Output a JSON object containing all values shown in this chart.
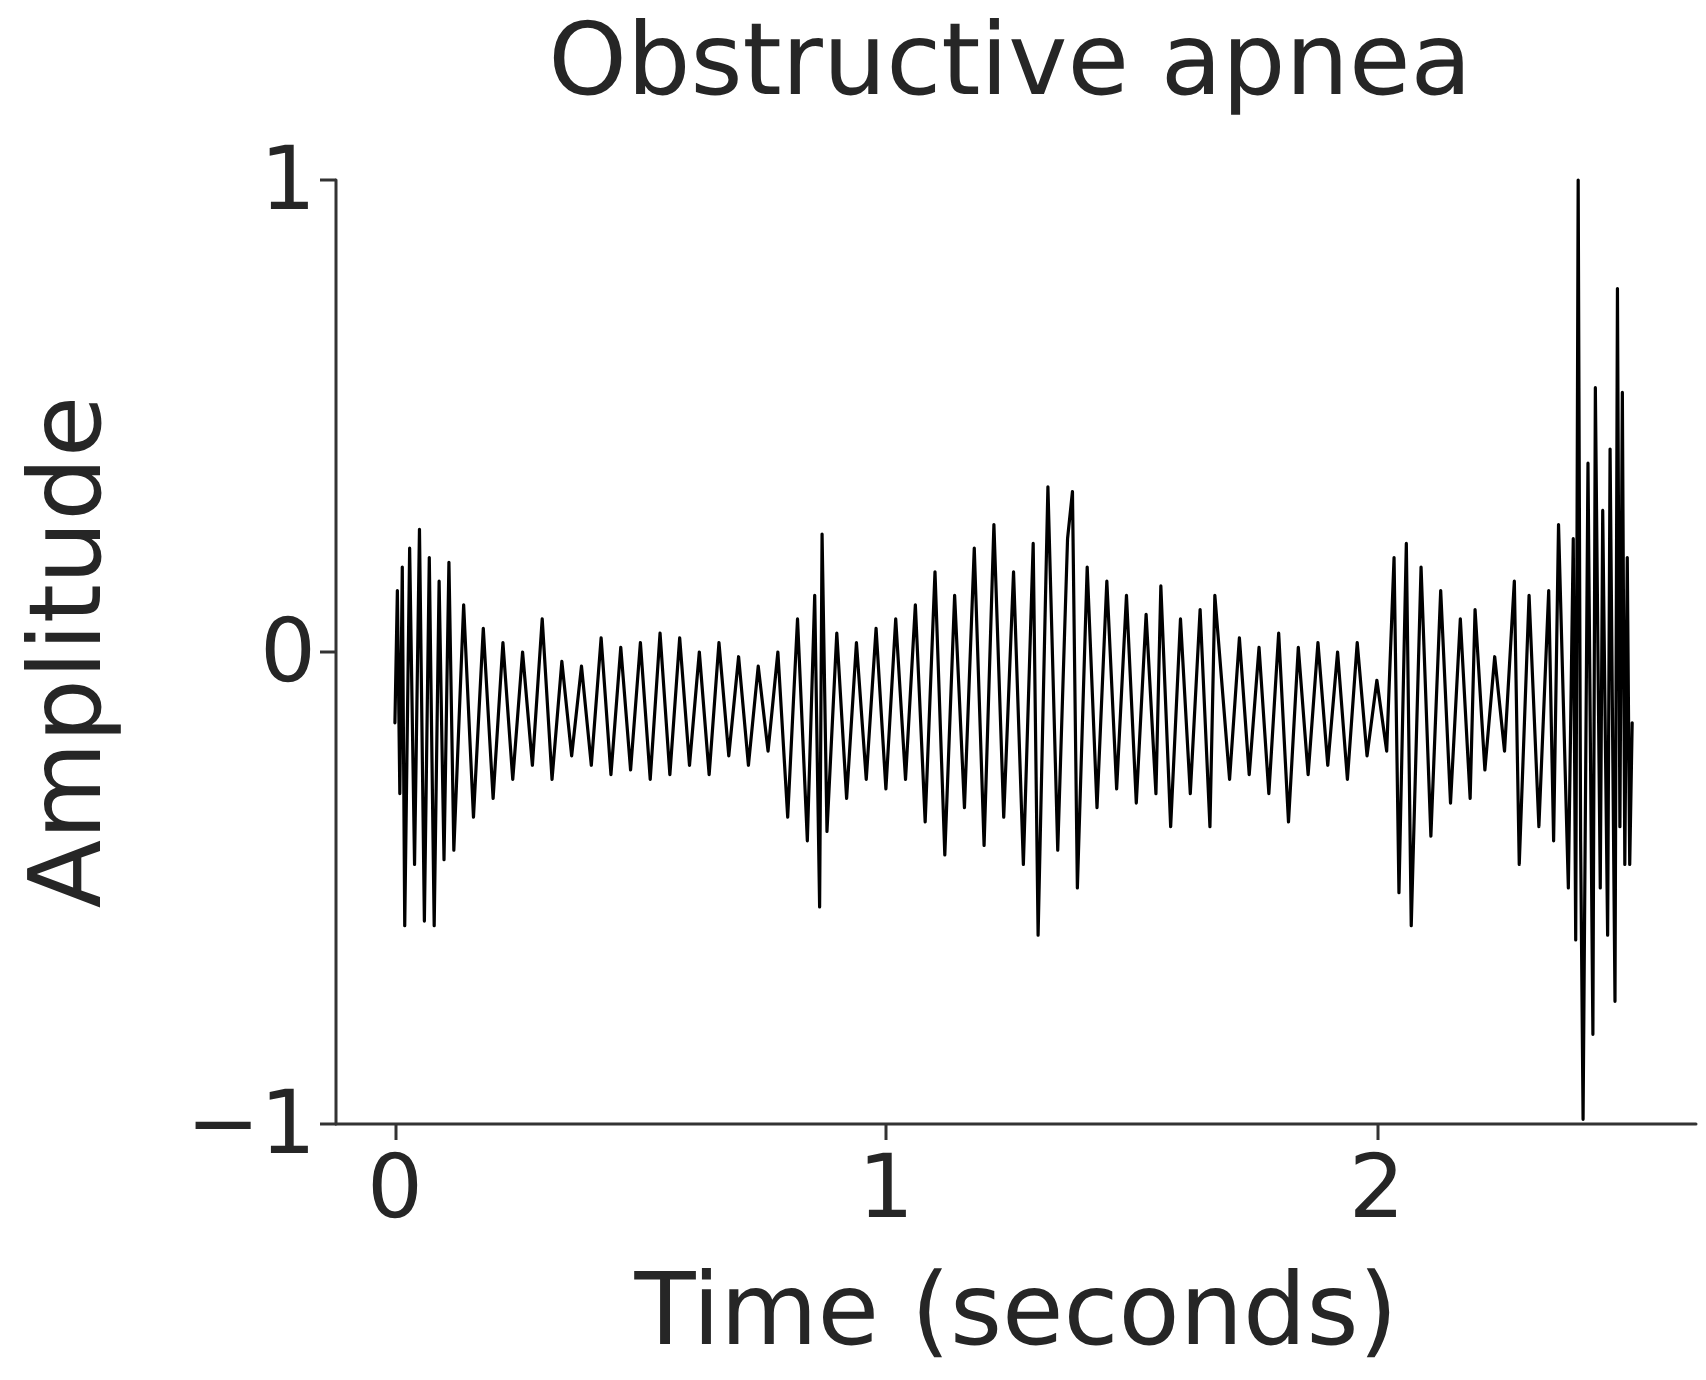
{
  "chart_data": {
    "type": "line",
    "title": "Obstructive apnea",
    "xlabel": "Time (seconds)",
    "ylabel": "Amplitude",
    "xlim": [
      -0.12,
      2.65
    ],
    "xticks": [
      0,
      1,
      2
    ],
    "ylim": [
      -1,
      1
    ],
    "yticks": [
      -1,
      0,
      1
    ],
    "grid": false,
    "marker": "none",
    "line_style": "solid",
    "series": [
      {
        "color": "#000000",
        "x": [
          0,
          0.005,
          0.01,
          0.015,
          0.02,
          0.03,
          0.04,
          0.05,
          0.06,
          0.07,
          0.08,
          0.09,
          0.1,
          0.11,
          0.12,
          0.14,
          0.16,
          0.18,
          0.2,
          0.22,
          0.24,
          0.26,
          0.28,
          0.3,
          0.32,
          0.34,
          0.36,
          0.38,
          0.4,
          0.42,
          0.44,
          0.46,
          0.48,
          0.5,
          0.52,
          0.54,
          0.56,
          0.58,
          0.6,
          0.62,
          0.64,
          0.66,
          0.68,
          0.7,
          0.72,
          0.74,
          0.76,
          0.78,
          0.8,
          0.82,
          0.84,
          0.855,
          0.865,
          0.87,
          0.88,
          0.9,
          0.92,
          0.94,
          0.96,
          0.98,
          1.0,
          1.02,
          1.04,
          1.06,
          1.08,
          1.1,
          1.12,
          1.14,
          1.16,
          1.18,
          1.2,
          1.22,
          1.24,
          1.26,
          1.28,
          1.3,
          1.31,
          1.33,
          1.35,
          1.37,
          1.38,
          1.39,
          1.41,
          1.43,
          1.45,
          1.47,
          1.49,
          1.51,
          1.53,
          1.55,
          1.56,
          1.58,
          1.6,
          1.62,
          1.64,
          1.66,
          1.67,
          1.7,
          1.72,
          1.74,
          1.76,
          1.78,
          1.8,
          1.82,
          1.84,
          1.86,
          1.88,
          1.9,
          1.92,
          1.94,
          1.96,
          1.98,
          2.0,
          2.02,
          2.035,
          2.045,
          2.06,
          2.07,
          2.09,
          2.11,
          2.13,
          2.15,
          2.17,
          2.19,
          2.2,
          2.22,
          2.24,
          2.26,
          2.28,
          2.29,
          2.31,
          2.33,
          2.35,
          2.36,
          2.37,
          2.39,
          2.4,
          2.405,
          2.41,
          2.415,
          2.42,
          2.43,
          2.44,
          2.445,
          2.455,
          2.46,
          2.47,
          2.475,
          2.485,
          2.49,
          2.495,
          2.5,
          2.505,
          2.51,
          2.515,
          2.52
        ],
        "values": [
          -0.15,
          0.13,
          -0.3,
          0.18,
          -0.58,
          0.22,
          -0.45,
          0.26,
          -0.57,
          0.2,
          -0.58,
          0.15,
          -0.44,
          0.19,
          -0.42,
          0.1,
          -0.35,
          0.05,
          -0.31,
          0.02,
          -0.27,
          0.0,
          -0.24,
          0.07,
          -0.27,
          -0.02,
          -0.22,
          -0.03,
          -0.24,
          0.03,
          -0.26,
          0.01,
          -0.25,
          0.02,
          -0.27,
          0.04,
          -0.26,
          0.03,
          -0.24,
          0.0,
          -0.26,
          0.02,
          -0.22,
          -0.01,
          -0.24,
          -0.03,
          -0.21,
          0.0,
          -0.35,
          0.07,
          -0.4,
          0.12,
          -0.54,
          0.25,
          -0.38,
          0.04,
          -0.31,
          0.02,
          -0.27,
          0.05,
          -0.29,
          0.07,
          -0.27,
          0.1,
          -0.36,
          0.17,
          -0.43,
          0.12,
          -0.33,
          0.22,
          -0.41,
          0.27,
          -0.35,
          0.17,
          -0.45,
          0.23,
          -0.6,
          0.35,
          -0.42,
          0.24,
          0.34,
          -0.5,
          0.18,
          -0.33,
          0.15,
          -0.29,
          0.12,
          -0.32,
          0.08,
          -0.3,
          0.14,
          -0.37,
          0.07,
          -0.3,
          0.09,
          -0.37,
          0.12,
          -0.27,
          0.03,
          -0.26,
          0.01,
          -0.3,
          0.04,
          -0.36,
          0.01,
          -0.26,
          0.02,
          -0.24,
          0.0,
          -0.27,
          0.02,
          -0.22,
          -0.06,
          -0.21,
          0.2,
          -0.51,
          0.23,
          -0.58,
          0.18,
          -0.39,
          0.13,
          -0.32,
          0.07,
          -0.31,
          0.09,
          -0.25,
          -0.01,
          -0.21,
          0.15,
          -0.45,
          0.12,
          -0.37,
          0.13,
          -0.4,
          0.27,
          -0.5,
          0.24,
          -0.61,
          1.0,
          -0.4,
          -0.99,
          0.4,
          -0.81,
          0.56,
          -0.5,
          0.3,
          -0.6,
          0.43,
          -0.74,
          0.77,
          -0.37,
          0.55,
          -0.45,
          0.2,
          -0.45,
          -0.15
        ]
      }
    ]
  }
}
